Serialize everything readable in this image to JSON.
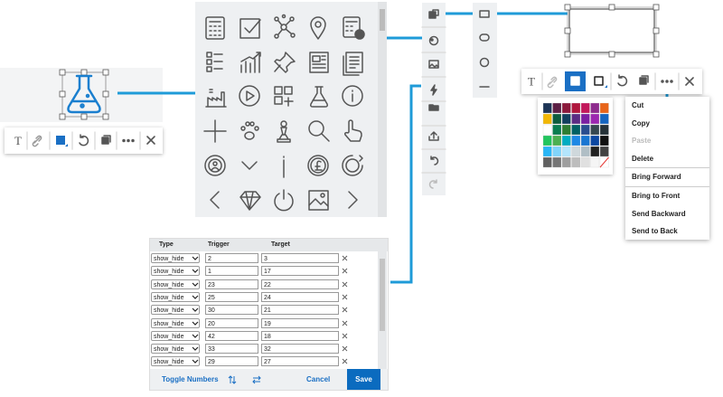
{
  "left_toolbar": {
    "text_tool": "T"
  },
  "right_toolbar": {
    "text_tool": "T"
  },
  "table": {
    "headers": [
      "Type",
      "Trigger",
      "Target"
    ],
    "rows": [
      {
        "type": "show_hide",
        "trigger": "2",
        "target": "3"
      },
      {
        "type": "show_hide",
        "trigger": "1",
        "target": "17"
      },
      {
        "type": "show_hide",
        "trigger": "23",
        "target": "22"
      },
      {
        "type": "show_hide",
        "trigger": "25",
        "target": "24"
      },
      {
        "type": "show_hide",
        "trigger": "30",
        "target": "21"
      },
      {
        "type": "show_hide",
        "trigger": "20",
        "target": "19"
      },
      {
        "type": "show_hide",
        "trigger": "42",
        "target": "18"
      },
      {
        "type": "show_hide",
        "trigger": "33",
        "target": "32"
      },
      {
        "type": "show_hide",
        "trigger": "29",
        "target": "27"
      }
    ]
  },
  "footer": {
    "toggle": "Toggle Numbers",
    "cancel": "Cancel",
    "save": "Save"
  },
  "context_menu": {
    "items": [
      "Cut",
      "Copy",
      "Paste",
      "Delete",
      "Bring Forward",
      "Bring to Front",
      "Send Backward",
      "Send to Back"
    ]
  }
}
